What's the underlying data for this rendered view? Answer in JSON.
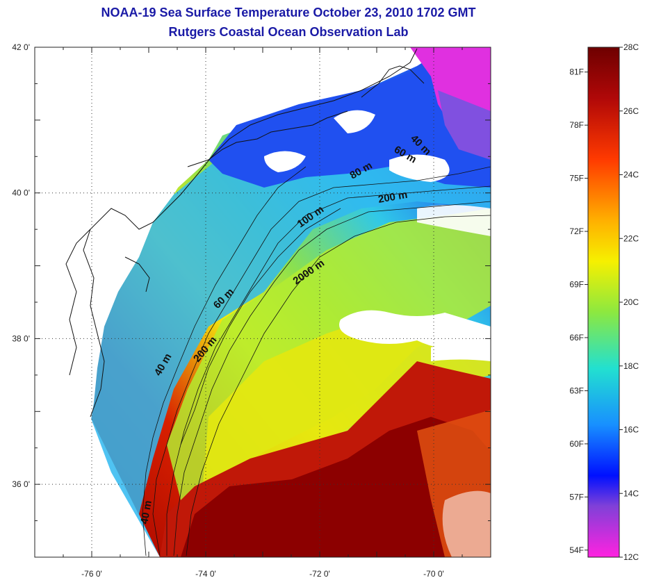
{
  "title": {
    "line1": "NOAA-19 Sea Surface Temperature October 23, 2010 1702 GMT",
    "line2": "Rutgers Coastal Ocean Observation Lab"
  },
  "map": {
    "lon_range": [
      -77,
      -69
    ],
    "lat_range": [
      35,
      42
    ],
    "lon_ticks": [
      {
        "value": -76,
        "label": "-76 0'"
      },
      {
        "value": -74,
        "label": "-74 0'"
      },
      {
        "value": -72,
        "label": "-72 0'"
      },
      {
        "value": -70,
        "label": "-70 0'"
      }
    ],
    "lat_ticks": [
      {
        "value": 42,
        "label": "42 0'"
      },
      {
        "value": 40,
        "label": "40 0'"
      },
      {
        "value": 38,
        "label": "38 0'"
      },
      {
        "value": 36,
        "label": "36 0'"
      }
    ],
    "contour_labels": [
      {
        "text": "40 m"
      },
      {
        "text": "60 m"
      },
      {
        "text": "80 m"
      },
      {
        "text": "200 m"
      },
      {
        "text": "100 m"
      },
      {
        "text": "2000 m"
      },
      {
        "text": "60 m"
      },
      {
        "text": "200 m"
      },
      {
        "text": "40 m"
      },
      {
        "text": "40 m"
      }
    ]
  },
  "colorbar": {
    "celsius_labels": [
      "28C",
      "26C",
      "24C",
      "22C",
      "20C",
      "18C",
      "16C",
      "14C",
      "12C"
    ],
    "fahrenheit_labels": [
      "81F",
      "78F",
      "75F",
      "72F",
      "69F",
      "66F",
      "63F",
      "60F",
      "57F",
      "54F"
    ],
    "colors": {
      "top": "#7a0000",
      "red": "#d01010",
      "orange": "#ff7a00",
      "yellow": "#ffe600",
      "green": "#7de84a",
      "cyan": "#22d8e0",
      "blue": "#1070ff",
      "darkblue": "#0000ff",
      "purple": "#9a40d8",
      "magenta": "#ff22dd"
    }
  }
}
